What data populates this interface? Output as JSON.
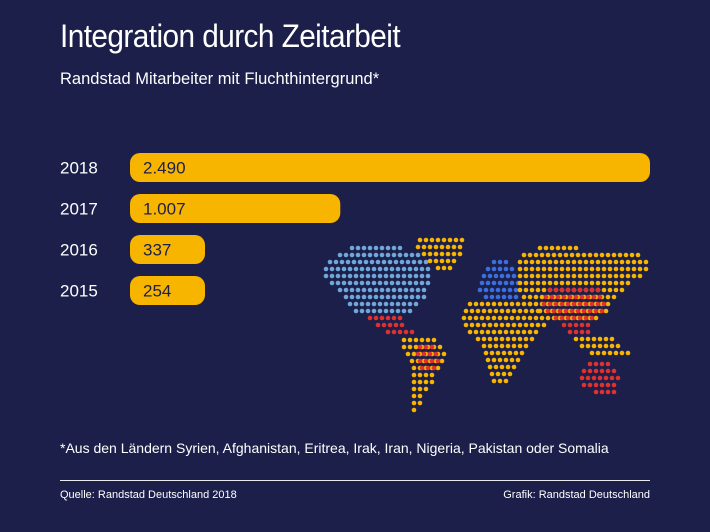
{
  "title": "Integration durch Zeitarbeit",
  "subtitle": "Randstad Mitarbeiter mit Fluchthintergrund*",
  "footnote": "*Aus den Ländern Syrien, Afghanistan, Eritrea, Irak, Iran, Nigeria, Pakistan oder Somalia",
  "source": "Quelle: Randstad Deutschland 2018",
  "credit": "Grafik: Randstad Deutschland",
  "colors": {
    "background": "#1c1f4a",
    "bar": "#f7b500",
    "bar_text": "#1c1f4a",
    "map_north_america": "#6fa8d8",
    "map_central_south_america": "#e0312f",
    "map_europe": "#3a6fe0",
    "map_asia_middle_east": "#e0312f",
    "map_default": "#f7b500"
  },
  "chart_data": {
    "type": "bar",
    "orientation": "horizontal",
    "categories": [
      "2018",
      "2017",
      "2016",
      "2015"
    ],
    "values": [
      2490,
      1007,
      337,
      254
    ],
    "value_labels": [
      "2.490",
      "1.007",
      "337",
      "254"
    ],
    "xlim": [
      0,
      2490
    ],
    "grid": false
  },
  "map": {
    "type": "dotted-world-map",
    "regions": [
      "north-america",
      "greenland",
      "central-america",
      "south-america",
      "europe",
      "africa",
      "asia",
      "middle-east",
      "southeast-asia",
      "australia"
    ]
  }
}
